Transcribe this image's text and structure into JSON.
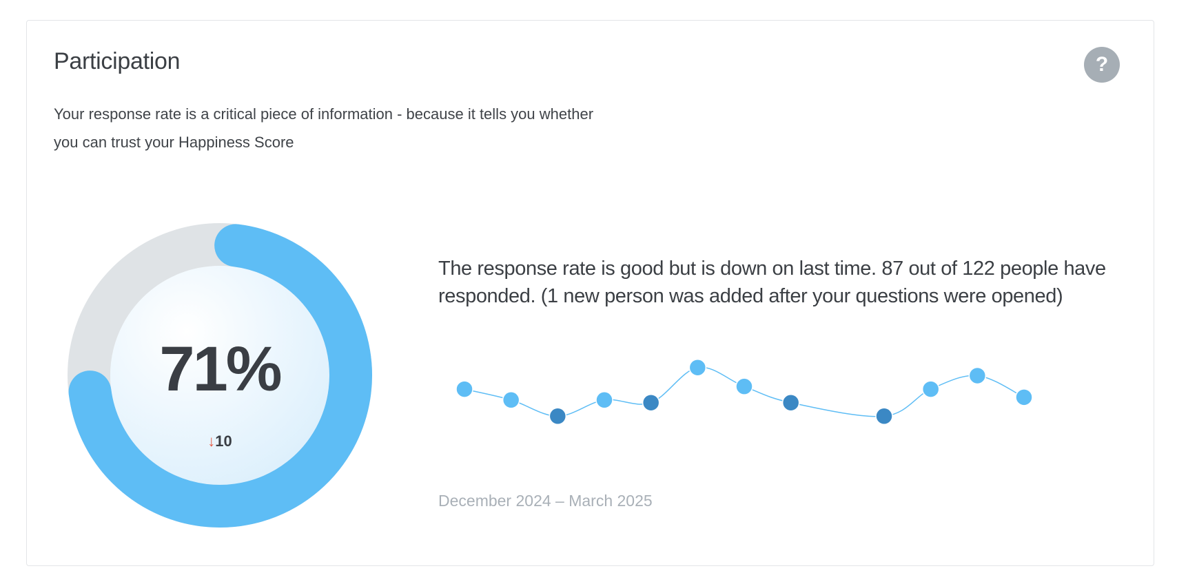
{
  "header": {
    "title": "Participation",
    "help_label": "?",
    "description": "Your response rate is a critical piece of information - because it tells you whether you can trust your Happiness Score"
  },
  "gauge": {
    "percent_label": "71%",
    "percent_value": 71,
    "delta_arrow": "↓",
    "delta_value": "10",
    "colors": {
      "fill": "#5ebdf5",
      "track": "#dfe3e6",
      "arrow": "#e45a45"
    }
  },
  "summary_text": "The response rate is good but is down on last time. 87 out of 122 people have responded. (1 new person was added after your questions were opened)",
  "chart_data": {
    "type": "line",
    "title": "",
    "xlabel": "December 2024 – March 2025",
    "ylabel": "",
    "ylim": [
      0,
      100
    ],
    "points": [
      {
        "index": 0,
        "value": 77,
        "highlight": false
      },
      {
        "index": 1,
        "value": 75,
        "highlight": false
      },
      {
        "index": 2,
        "value": 72,
        "highlight": true
      },
      {
        "index": 3,
        "value": 75,
        "highlight": false
      },
      {
        "index": 4,
        "value": 74.5,
        "highlight": true
      },
      {
        "index": 5,
        "value": 81,
        "highlight": false
      },
      {
        "index": 6,
        "value": 77.5,
        "highlight": false
      },
      {
        "index": 7,
        "value": 74.5,
        "highlight": true
      },
      {
        "index": 9,
        "value": 72,
        "highlight": true
      },
      {
        "index": 10,
        "value": 77,
        "highlight": false
      },
      {
        "index": 11,
        "value": 79.5,
        "highlight": false
      },
      {
        "index": 12,
        "value": 75.5,
        "highlight": false
      }
    ],
    "y_domain": [
      70,
      83
    ],
    "x_domain": [
      0,
      12
    ],
    "colors": {
      "point": "#5ebdf5",
      "point_highlight": "#3b88c4",
      "line": "#5ebdf5",
      "line_dark": "#3b88c4"
    }
  }
}
